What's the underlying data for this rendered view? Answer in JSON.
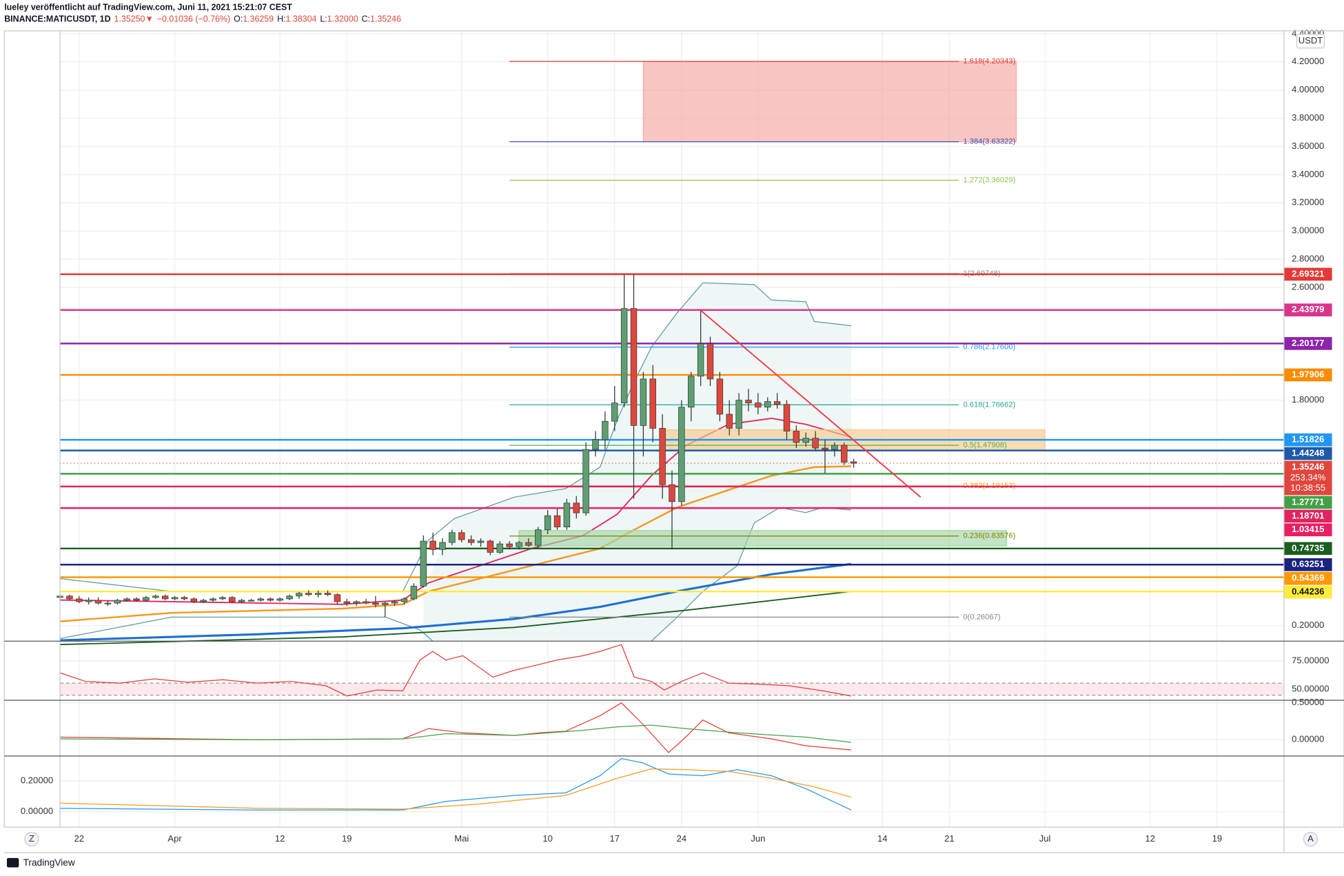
{
  "header": {
    "publisher": "lueley veröffentlicht auf TradingView.com, Juni 11, 2021 15:21:07 CEST",
    "symbol": "BINANCE:MATICUSDT, 1D",
    "last": "1.35250▼",
    "change": "−0.01036 (−0.76%)",
    "o_label": "O:",
    "o": "1.36259",
    "h_label": "H:",
    "h": "1.38304",
    "l_label": "L:",
    "l": "1.32000",
    "c_label": "C:",
    "c": "1.35246"
  },
  "ui": {
    "currency": "USDT",
    "tz_button": "Z",
    "auto_button": "A",
    "brand": "TradingView"
  },
  "chart_data": {
    "type": "candlestick",
    "up_color": "#5f9e72",
    "down_color": "#e0463c",
    "grid": true,
    "x": [
      "2021-03-20",
      "2021-03-21",
      "2021-03-22",
      "2021-03-23",
      "2021-03-24",
      "2021-03-25",
      "2021-03-26",
      "2021-03-27",
      "2021-03-28",
      "2021-03-29",
      "2021-03-30",
      "2021-03-31",
      "2021-04-01",
      "2021-04-02",
      "2021-04-03",
      "2021-04-04",
      "2021-04-05",
      "2021-04-06",
      "2021-04-07",
      "2021-04-08",
      "2021-04-09",
      "2021-04-10",
      "2021-04-11",
      "2021-04-12",
      "2021-04-13",
      "2021-04-14",
      "2021-04-15",
      "2021-04-16",
      "2021-04-17",
      "2021-04-18",
      "2021-04-19",
      "2021-04-20",
      "2021-04-21",
      "2021-04-22",
      "2021-04-23",
      "2021-04-24",
      "2021-04-25",
      "2021-04-26",
      "2021-04-27",
      "2021-04-28",
      "2021-04-29",
      "2021-04-30",
      "2021-05-01",
      "2021-05-02",
      "2021-05-03",
      "2021-05-04",
      "2021-05-05",
      "2021-05-06",
      "2021-05-07",
      "2021-05-08",
      "2021-05-09",
      "2021-05-10",
      "2021-05-11",
      "2021-05-12",
      "2021-05-13",
      "2021-05-14",
      "2021-05-15",
      "2021-05-16",
      "2021-05-17",
      "2021-05-18",
      "2021-05-19",
      "2021-05-20",
      "2021-05-21",
      "2021-05-22",
      "2021-05-23",
      "2021-05-24",
      "2021-05-25",
      "2021-05-26",
      "2021-05-27",
      "2021-05-28",
      "2021-05-29",
      "2021-05-30",
      "2021-05-31",
      "2021-06-01",
      "2021-06-02",
      "2021-06-03",
      "2021-06-04",
      "2021-06-05",
      "2021-06-06",
      "2021-06-07",
      "2021-06-08",
      "2021-06-09",
      "2021-06-10",
      "2021-06-11"
    ],
    "open": [
      0.4,
      0.41,
      0.39,
      0.37,
      0.38,
      0.36,
      0.36,
      0.38,
      0.39,
      0.38,
      0.4,
      0.41,
      0.39,
      0.4,
      0.39,
      0.37,
      0.38,
      0.39,
      0.4,
      0.37,
      0.38,
      0.38,
      0.39,
      0.38,
      0.39,
      0.41,
      0.43,
      0.42,
      0.43,
      0.42,
      0.37,
      0.36,
      0.37,
      0.36,
      0.35,
      0.36,
      0.37,
      0.39,
      0.48,
      0.8,
      0.74,
      0.79,
      0.86,
      0.81,
      0.79,
      0.8,
      0.72,
      0.78,
      0.76,
      0.79,
      0.77,
      0.88,
      0.98,
      0.9,
      1.07,
      1.0,
      1.45,
      1.52,
      1.65,
      1.78,
      2.45,
      1.62,
      1.95,
      1.6,
      1.2,
      1.08,
      1.75,
      1.97,
      2.2,
      1.95,
      1.7,
      1.6,
      1.8,
      1.78,
      1.75,
      1.79,
      1.77,
      1.58,
      1.5,
      1.53,
      1.46,
      1.45,
      1.48,
      1.36259
    ],
    "high": [
      0.42,
      0.42,
      0.41,
      0.4,
      0.4,
      0.38,
      0.39,
      0.4,
      0.4,
      0.41,
      0.42,
      0.42,
      0.41,
      0.41,
      0.4,
      0.39,
      0.4,
      0.41,
      0.41,
      0.39,
      0.39,
      0.4,
      0.4,
      0.4,
      0.42,
      0.44,
      0.45,
      0.45,
      0.45,
      0.43,
      0.39,
      0.38,
      0.39,
      0.41,
      0.37,
      0.38,
      0.4,
      0.5,
      0.84,
      0.86,
      0.82,
      0.88,
      0.88,
      0.84,
      0.82,
      0.81,
      0.8,
      0.8,
      0.8,
      0.82,
      0.9,
      1.02,
      1.03,
      1.1,
      1.12,
      1.5,
      1.58,
      1.72,
      1.9,
      2.69,
      2.69,
      2.0,
      2.05,
      1.7,
      1.3,
      1.8,
      2.0,
      2.44,
      2.25,
      2.0,
      1.8,
      1.85,
      1.88,
      1.85,
      1.82,
      1.85,
      1.8,
      1.62,
      1.57,
      1.58,
      1.52,
      1.5,
      1.5,
      1.38304
    ],
    "low": [
      0.38,
      0.38,
      0.36,
      0.35,
      0.35,
      0.34,
      0.35,
      0.37,
      0.37,
      0.37,
      0.39,
      0.38,
      0.38,
      0.38,
      0.36,
      0.36,
      0.37,
      0.38,
      0.36,
      0.36,
      0.37,
      0.37,
      0.37,
      0.37,
      0.38,
      0.39,
      0.41,
      0.4,
      0.41,
      0.35,
      0.34,
      0.34,
      0.35,
      0.33,
      0.26,
      0.34,
      0.35,
      0.38,
      0.47,
      0.7,
      0.7,
      0.77,
      0.79,
      0.77,
      0.76,
      0.7,
      0.71,
      0.74,
      0.74,
      0.76,
      0.76,
      0.85,
      0.88,
      0.88,
      0.96,
      0.98,
      1.4,
      1.45,
      1.58,
      1.75,
      1.1,
      1.4,
      1.5,
      1.1,
      0.74,
      1.05,
      1.65,
      1.9,
      1.9,
      1.65,
      1.55,
      1.55,
      1.72,
      1.7,
      1.72,
      1.74,
      1.52,
      1.46,
      1.47,
      1.44,
      1.28,
      1.4,
      1.34,
      1.32
    ],
    "close": [
      0.41,
      0.39,
      0.37,
      0.38,
      0.36,
      0.36,
      0.38,
      0.39,
      0.38,
      0.4,
      0.41,
      0.39,
      0.4,
      0.39,
      0.37,
      0.38,
      0.39,
      0.4,
      0.37,
      0.38,
      0.38,
      0.39,
      0.38,
      0.39,
      0.41,
      0.43,
      0.42,
      0.43,
      0.42,
      0.37,
      0.36,
      0.37,
      0.36,
      0.35,
      0.36,
      0.37,
      0.39,
      0.48,
      0.8,
      0.74,
      0.79,
      0.86,
      0.81,
      0.79,
      0.8,
      0.72,
      0.78,
      0.76,
      0.79,
      0.77,
      0.88,
      0.98,
      0.9,
      1.07,
      1.0,
      1.45,
      1.52,
      1.65,
      1.78,
      2.45,
      1.62,
      1.95,
      1.6,
      1.2,
      1.08,
      1.75,
      1.97,
      2.2,
      1.95,
      1.7,
      1.6,
      1.8,
      1.78,
      1.75,
      1.79,
      1.77,
      1.58,
      1.5,
      1.53,
      1.46,
      1.45,
      1.48,
      1.36,
      1.35246
    ],
    "xlim": [
      "2021-03-20",
      "2021-07-26"
    ],
    "xticks": [
      {
        "value": "2021-03-22",
        "label": "22"
      },
      {
        "value": "2021-04-01",
        "label": "Apr"
      },
      {
        "value": "2021-04-12",
        "label": "12"
      },
      {
        "value": "2021-04-19",
        "label": "19"
      },
      {
        "value": "2021-05-01",
        "label": "Mai"
      },
      {
        "value": "2021-05-10",
        "label": "10"
      },
      {
        "value": "2021-05-17",
        "label": "17"
      },
      {
        "value": "2021-05-24",
        "label": "24"
      },
      {
        "value": "2021-06-01",
        "label": "Jun"
      },
      {
        "value": "2021-06-14",
        "label": "14"
      },
      {
        "value": "2021-06-21",
        "label": "21"
      },
      {
        "value": "2021-07-01",
        "label": "Jul"
      },
      {
        "value": "2021-07-12",
        "label": "12"
      },
      {
        "value": "2021-07-19",
        "label": "19"
      }
    ],
    "ylim": [
      0.09,
      4.42
    ],
    "yticks": [
      {
        "value": 4.4,
        "label": "4.40000"
      },
      {
        "value": 4.2,
        "label": "4.20000"
      },
      {
        "value": 4.0,
        "label": "4.00000"
      },
      {
        "value": 3.8,
        "label": "3.80000"
      },
      {
        "value": 3.6,
        "label": "3.60000"
      },
      {
        "value": 3.4,
        "label": "3.40000"
      },
      {
        "value": 3.2,
        "label": "3.20000"
      },
      {
        "value": 3.0,
        "label": "3.00000"
      },
      {
        "value": 2.8,
        "label": "2.80000"
      },
      {
        "value": 2.6,
        "label": "2.60000"
      },
      {
        "value": 1.8,
        "label": "1.80000"
      },
      {
        "value": 0.2,
        "label": "0.20000"
      }
    ],
    "levels": [
      {
        "value": 2.69321,
        "color": "#e53935"
      },
      {
        "value": 2.43979,
        "color": "#d9368b"
      },
      {
        "value": 2.20177,
        "color": "#8e24aa"
      },
      {
        "value": 1.97906,
        "color": "#fb8c00"
      },
      {
        "value": 1.51826,
        "color": "#2196f3"
      },
      {
        "value": 1.44248,
        "color": "#1e5aa8"
      },
      {
        "value": 1.27771,
        "color": "#43a047"
      },
      {
        "value": 1.18701,
        "color": "#e0245e"
      },
      {
        "value": 1.03415,
        "color": "#e91e63"
      },
      {
        "value": 0.74735,
        "color": "#1b5e20"
      },
      {
        "value": 0.63251,
        "color": "#1a237e"
      },
      {
        "value": 0.54369,
        "color": "#ff9800"
      },
      {
        "value": 0.44236,
        "color": "#ffeb3b"
      }
    ],
    "current": {
      "value": 1.35246,
      "change": "253.34%",
      "countdown": "10:38:55",
      "color": "#e0463c"
    },
    "fib_x": [
      "2021-05-06",
      "2021-06-22"
    ],
    "fibs": [
      {
        "label": "1.618(4.20343)",
        "value": 4.20343,
        "color": "#e53935"
      },
      {
        "label": "1.384(3.63322)",
        "value": 3.63322,
        "color": "#3f51b5"
      },
      {
        "label": "1.272(3.36029)",
        "value": 3.36029,
        "color": "#8bc34a"
      },
      {
        "label": "1(2.69748)",
        "value": 2.69748,
        "color": "#888888"
      },
      {
        "label": "0.786(2.17600)",
        "value": 2.176,
        "color": "#2196f3"
      },
      {
        "label": "0.618(1.76662)",
        "value": 1.76662,
        "color": "#26a69a"
      },
      {
        "label": "0.5(1.47908)",
        "value": 1.47908,
        "color": "#4caf50"
      },
      {
        "label": "0.382(1.19153)",
        "value": 1.19153,
        "color": "#ff9800"
      },
      {
        "label": "0.236(0.83576)",
        "value": 0.83576,
        "color": "#808000"
      },
      {
        "label": "0(0.26067)",
        "value": 0.26067,
        "color": "#888888"
      }
    ],
    "zones": [
      {
        "x": [
          "2021-05-20",
          "2021-06-28"
        ],
        "y": [
          4.20343,
          3.63322
        ],
        "color": "#f4a8a2"
      },
      {
        "x": [
          "2021-05-22",
          "2021-07-01"
        ],
        "y": [
          1.59,
          1.44
        ],
        "color": "#f7c98c"
      },
      {
        "x": [
          "2021-05-07",
          "2021-06-27"
        ],
        "y": [
          0.875,
          0.765
        ],
        "color": "#a5d6a7"
      }
    ],
    "trendline": {
      "x": [
        "2021-05-26",
        "2021-06-18"
      ],
      "y": [
        2.437,
        1.112
      ],
      "color": "#f23645"
    },
    "panes": [
      {
        "ylim": [
          40.2,
          90.9
        ],
        "yticks": [
          {
            "value": 75,
            "label": "75.00000"
          },
          {
            "value": 50,
            "label": "50.00000"
          }
        ],
        "axis": "right"
      },
      {
        "ylim": [
          -0.221,
          0.523
        ],
        "yticks": [
          {
            "value": 0.5,
            "label": "0.50000"
          },
          {
            "value": 0,
            "label": "0.00000"
          }
        ],
        "axis": "right"
      },
      {
        "ylim": [
          -0.1,
          0.356
        ],
        "yticks": [
          {
            "value": 0.2,
            "label": "0.20000"
          },
          {
            "value": 0,
            "label": "0.00000"
          }
        ],
        "axis": "left"
      }
    ]
  }
}
